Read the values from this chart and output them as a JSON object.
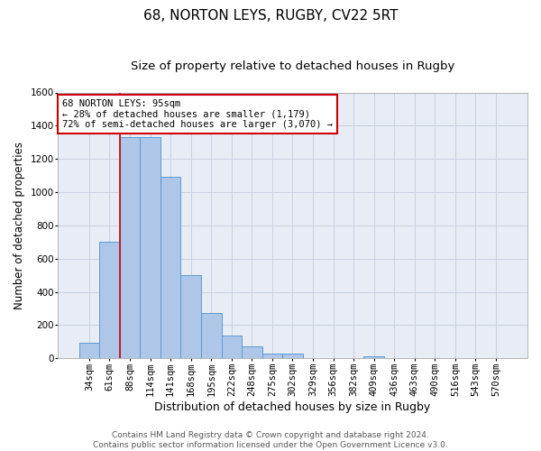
{
  "title1": "68, NORTON LEYS, RUGBY, CV22 5RT",
  "title2": "Size of property relative to detached houses in Rugby",
  "xlabel": "Distribution of detached houses by size in Rugby",
  "ylabel": "Number of detached properties",
  "bar_labels": [
    "34sqm",
    "61sqm",
    "88sqm",
    "114sqm",
    "141sqm",
    "168sqm",
    "195sqm",
    "222sqm",
    "248sqm",
    "275sqm",
    "302sqm",
    "329sqm",
    "356sqm",
    "382sqm",
    "409sqm",
    "436sqm",
    "463sqm",
    "490sqm",
    "516sqm",
    "543sqm",
    "570sqm"
  ],
  "bar_values": [
    95,
    700,
    1330,
    1330,
    1095,
    500,
    275,
    135,
    70,
    30,
    30,
    0,
    0,
    0,
    15,
    0,
    0,
    0,
    0,
    0,
    0
  ],
  "bar_color": "#aec6e8",
  "bar_edge_color": "#5b9bd5",
  "grid_color": "#c8d0e0",
  "background_color": "#e8edf5",
  "vline_color": "#cc0000",
  "annotation_text": "68 NORTON LEYS: 95sqm\n← 28% of detached houses are smaller (1,179)\n72% of semi-detached houses are larger (3,070) →",
  "annotation_box_color": "#cc0000",
  "ylim": [
    0,
    1600
  ],
  "yticks": [
    0,
    200,
    400,
    600,
    800,
    1000,
    1200,
    1400,
    1600
  ],
  "footer_text": "Contains HM Land Registry data © Crown copyright and database right 2024.\nContains public sector information licensed under the Open Government Licence v3.0.",
  "title1_fontsize": 11,
  "title2_fontsize": 9.5,
  "xlabel_fontsize": 9,
  "ylabel_fontsize": 8.5,
  "tick_fontsize": 7.5,
  "annotation_fontsize": 7.5,
  "footer_fontsize": 6.5,
  "vline_index": 1.5
}
